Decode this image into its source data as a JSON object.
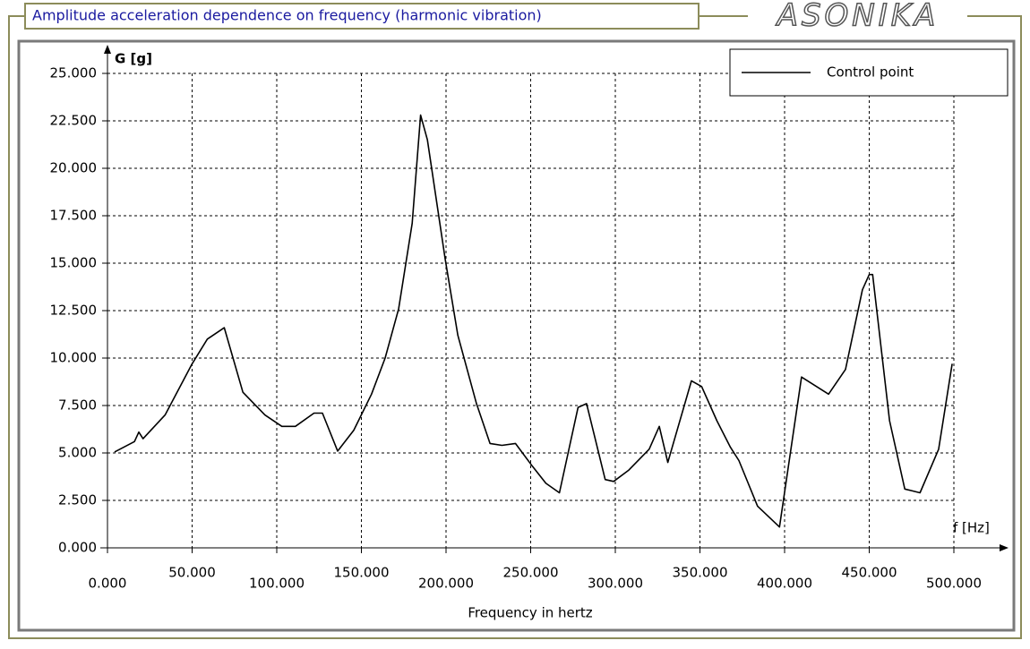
{
  "chart_data": {
    "type": "line",
    "title": "Amplitude acceleration dependence on frequency (harmonic vibration)",
    "logo": "ASONIKA",
    "x_label": "Frequency in hertz",
    "x_axis_name": "f [Hz]",
    "y_axis_name": "G [g]",
    "grid": true,
    "legend": "upper right",
    "x": [
      4.2,
      15.9,
      18.5,
      21,
      34,
      50,
      59,
      69,
      80,
      93,
      103,
      111,
      122,
      127,
      136,
      145.5,
      156,
      164,
      172,
      180,
      185,
      189,
      199.5,
      207,
      218,
      226,
      233,
      241,
      251,
      259,
      267,
      278,
      283,
      294,
      299,
      308,
      320,
      326,
      331,
      345,
      351,
      360,
      368,
      373,
      384,
      397,
      410,
      426,
      436,
      446,
      450,
      452,
      462,
      471,
      480,
      491,
      499
    ],
    "series": [
      {
        "name": "Control point",
        "color": "#000000",
        "values": [
          5.05,
          5.6,
          6.1,
          5.75,
          7.0,
          9.7,
          11.0,
          11.6,
          8.2,
          7.0,
          6.4,
          6.4,
          7.1,
          7.1,
          5.1,
          6.2,
          8.1,
          10.0,
          12.6,
          17.1,
          22.8,
          21.5,
          15.2,
          11.2,
          7.6,
          5.5,
          5.4,
          5.5,
          4.3,
          3.4,
          2.9,
          7.4,
          7.6,
          3.6,
          3.5,
          4.1,
          5.2,
          6.4,
          4.5,
          8.8,
          8.5,
          6.7,
          5.3,
          4.6,
          2.2,
          1.1,
          9.0,
          8.1,
          9.4,
          13.6,
          14.4,
          14.4,
          6.7,
          3.1,
          2.9,
          5.2,
          9.7
        ]
      }
    ],
    "xlim": [
      0,
      500
    ],
    "ylim": [
      0,
      25
    ],
    "xticks": [
      {
        "value": 0,
        "label": "0.000"
      },
      {
        "value": 50,
        "label": "50.000"
      },
      {
        "value": 100,
        "label": "100.000"
      },
      {
        "value": 150,
        "label": "150.000"
      },
      {
        "value": 200,
        "label": "200.000"
      },
      {
        "value": 250,
        "label": "250.000"
      },
      {
        "value": 300,
        "label": "300.000"
      },
      {
        "value": 350,
        "label": "350.000"
      },
      {
        "value": 400,
        "label": "400.000"
      },
      {
        "value": 450,
        "label": "450.000"
      },
      {
        "value": 500,
        "label": "500.000"
      }
    ],
    "yticks": [
      {
        "value": 0,
        "label": "0.000"
      },
      {
        "value": 2.5,
        "label": "2.500"
      },
      {
        "value": 5,
        "label": "5.000"
      },
      {
        "value": 7.5,
        "label": "7.500"
      },
      {
        "value": 10,
        "label": "10.000"
      },
      {
        "value": 12.5,
        "label": "12.500"
      },
      {
        "value": 15,
        "label": "15.000"
      },
      {
        "value": 17.5,
        "label": "17.500"
      },
      {
        "value": 20,
        "label": "20.000"
      },
      {
        "value": 22.5,
        "label": "22.500"
      },
      {
        "value": 25,
        "label": "25.000"
      }
    ]
  }
}
